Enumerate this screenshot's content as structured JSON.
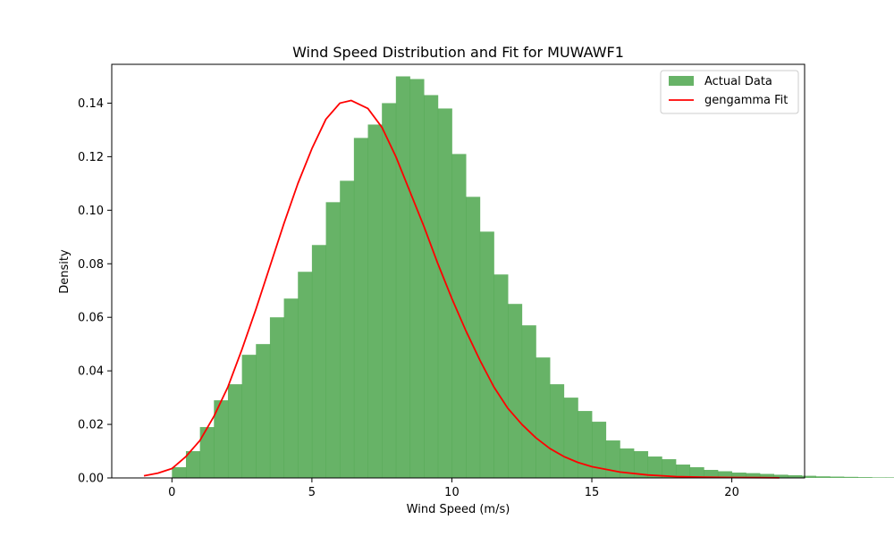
{
  "chart_data": {
    "type": "bar",
    "title": "Wind Speed Distribution and Fit for MUWAWF1",
    "xlabel": "Wind Speed (m/s)",
    "ylabel": "Density",
    "xlim": [
      -2.15,
      22.6
    ],
    "ylim": [
      0,
      0.1545
    ],
    "xticks": [
      0,
      5,
      10,
      15,
      20
    ],
    "yticks": [
      0.0,
      0.02,
      0.04,
      0.06,
      0.08,
      0.1,
      0.12,
      0.14
    ],
    "ytick_labels": [
      "0.00",
      "0.02",
      "0.04",
      "0.06",
      "0.08",
      "0.10",
      "0.12",
      "0.14"
    ],
    "legend": {
      "placement": "top-right",
      "entries": [
        "Actual Data",
        "gengamma Fit"
      ]
    },
    "grid": false,
    "histogram": {
      "name": "Actual Data",
      "color": "#4ca64c",
      "opacity": 0.85,
      "bin_width": 0.5,
      "bin_start": 0.0,
      "values": [
        0.004,
        0.01,
        0.019,
        0.029,
        0.035,
        0.046,
        0.05,
        0.06,
        0.067,
        0.077,
        0.087,
        0.103,
        0.111,
        0.127,
        0.132,
        0.14,
        0.15,
        0.149,
        0.143,
        0.138,
        0.121,
        0.105,
        0.092,
        0.076,
        0.065,
        0.057,
        0.045,
        0.035,
        0.03,
        0.025,
        0.021,
        0.014,
        0.011,
        0.01,
        0.008,
        0.007,
        0.005,
        0.004,
        0.003,
        0.0025,
        0.002,
        0.0018,
        0.0015,
        0.0012,
        0.001,
        0.0008,
        0.0006,
        0.0005,
        0.0004,
        0.0003,
        0.0002,
        0.0002,
        0.0001
      ]
    },
    "series": [
      {
        "name": "gengamma Fit",
        "color": "#ff0000",
        "x": [
          -1.0,
          -0.5,
          0.0,
          0.5,
          1.0,
          1.5,
          2.0,
          2.5,
          3.0,
          3.5,
          4.0,
          4.5,
          5.0,
          5.5,
          6.0,
          6.4,
          7.0,
          7.5,
          8.0,
          8.5,
          9.0,
          9.5,
          10.0,
          10.5,
          11.0,
          11.5,
          12.0,
          12.5,
          13.0,
          13.5,
          14.0,
          14.5,
          15.0,
          16.0,
          17.0,
          18.0,
          19.0,
          20.0,
          21.0,
          21.7
        ],
        "y": [
          0.0008,
          0.0018,
          0.0035,
          0.008,
          0.014,
          0.023,
          0.034,
          0.048,
          0.063,
          0.079,
          0.095,
          0.11,
          0.123,
          0.134,
          0.14,
          0.141,
          0.138,
          0.131,
          0.12,
          0.107,
          0.094,
          0.08,
          0.067,
          0.055,
          0.044,
          0.034,
          0.026,
          0.02,
          0.015,
          0.011,
          0.008,
          0.0058,
          0.0042,
          0.0022,
          0.0011,
          0.0005,
          0.0003,
          0.00015,
          0.0001,
          5e-05
        ]
      }
    ]
  }
}
